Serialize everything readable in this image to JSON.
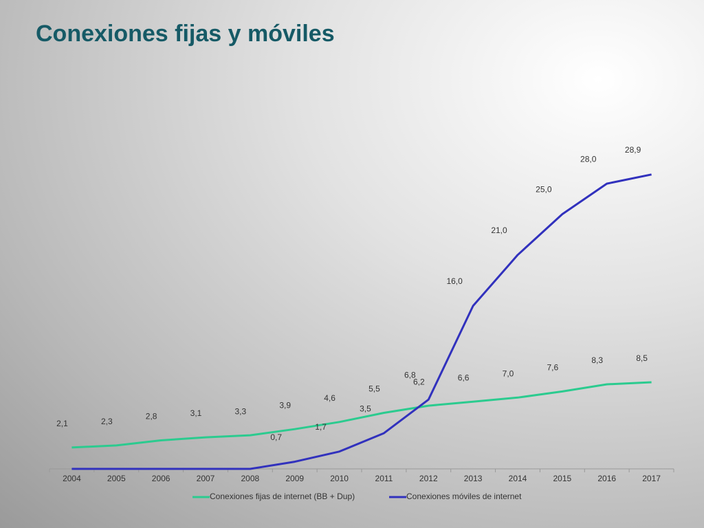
{
  "chart_data": {
    "type": "line",
    "title": "Conexiones fijas y móviles",
    "categories": [
      "2004",
      "2005",
      "2006",
      "2007",
      "2008",
      "2009",
      "2010",
      "2011",
      "2012",
      "2013",
      "2014",
      "2015",
      "2016",
      "2017"
    ],
    "series": [
      {
        "name": "Conexiones fijas de internet (BB + Dup)",
        "color": "#2bcb8f",
        "values": [
          2.1,
          2.3,
          2.8,
          3.1,
          3.3,
          3.9,
          4.6,
          5.5,
          6.2,
          6.6,
          7.0,
          7.6,
          8.3,
          8.5
        ],
        "value_labels": [
          "2,1",
          "2,3",
          "2,8",
          "3,1",
          "3,3",
          "3,9",
          "4,6",
          "5,5",
          "6,2",
          "6,6",
          "7,0",
          "7,6",
          "8,3",
          "8,5"
        ]
      },
      {
        "name": "Conexiones  móviles de internet",
        "color": "#3131bd",
        "values": [
          0,
          0,
          0,
          0,
          0,
          0.7,
          1.7,
          3.5,
          6.8,
          16.0,
          21.0,
          25.0,
          28.0,
          28.9
        ],
        "value_labels": [
          null,
          null,
          null,
          null,
          null,
          "0,7",
          "1,7",
          "3,5",
          "6,8",
          "16,0",
          "21,0",
          "25,0",
          "28,0",
          "28,9"
        ]
      }
    ],
    "ylim": [
      0,
      33
    ],
    "legend": "bottom"
  }
}
